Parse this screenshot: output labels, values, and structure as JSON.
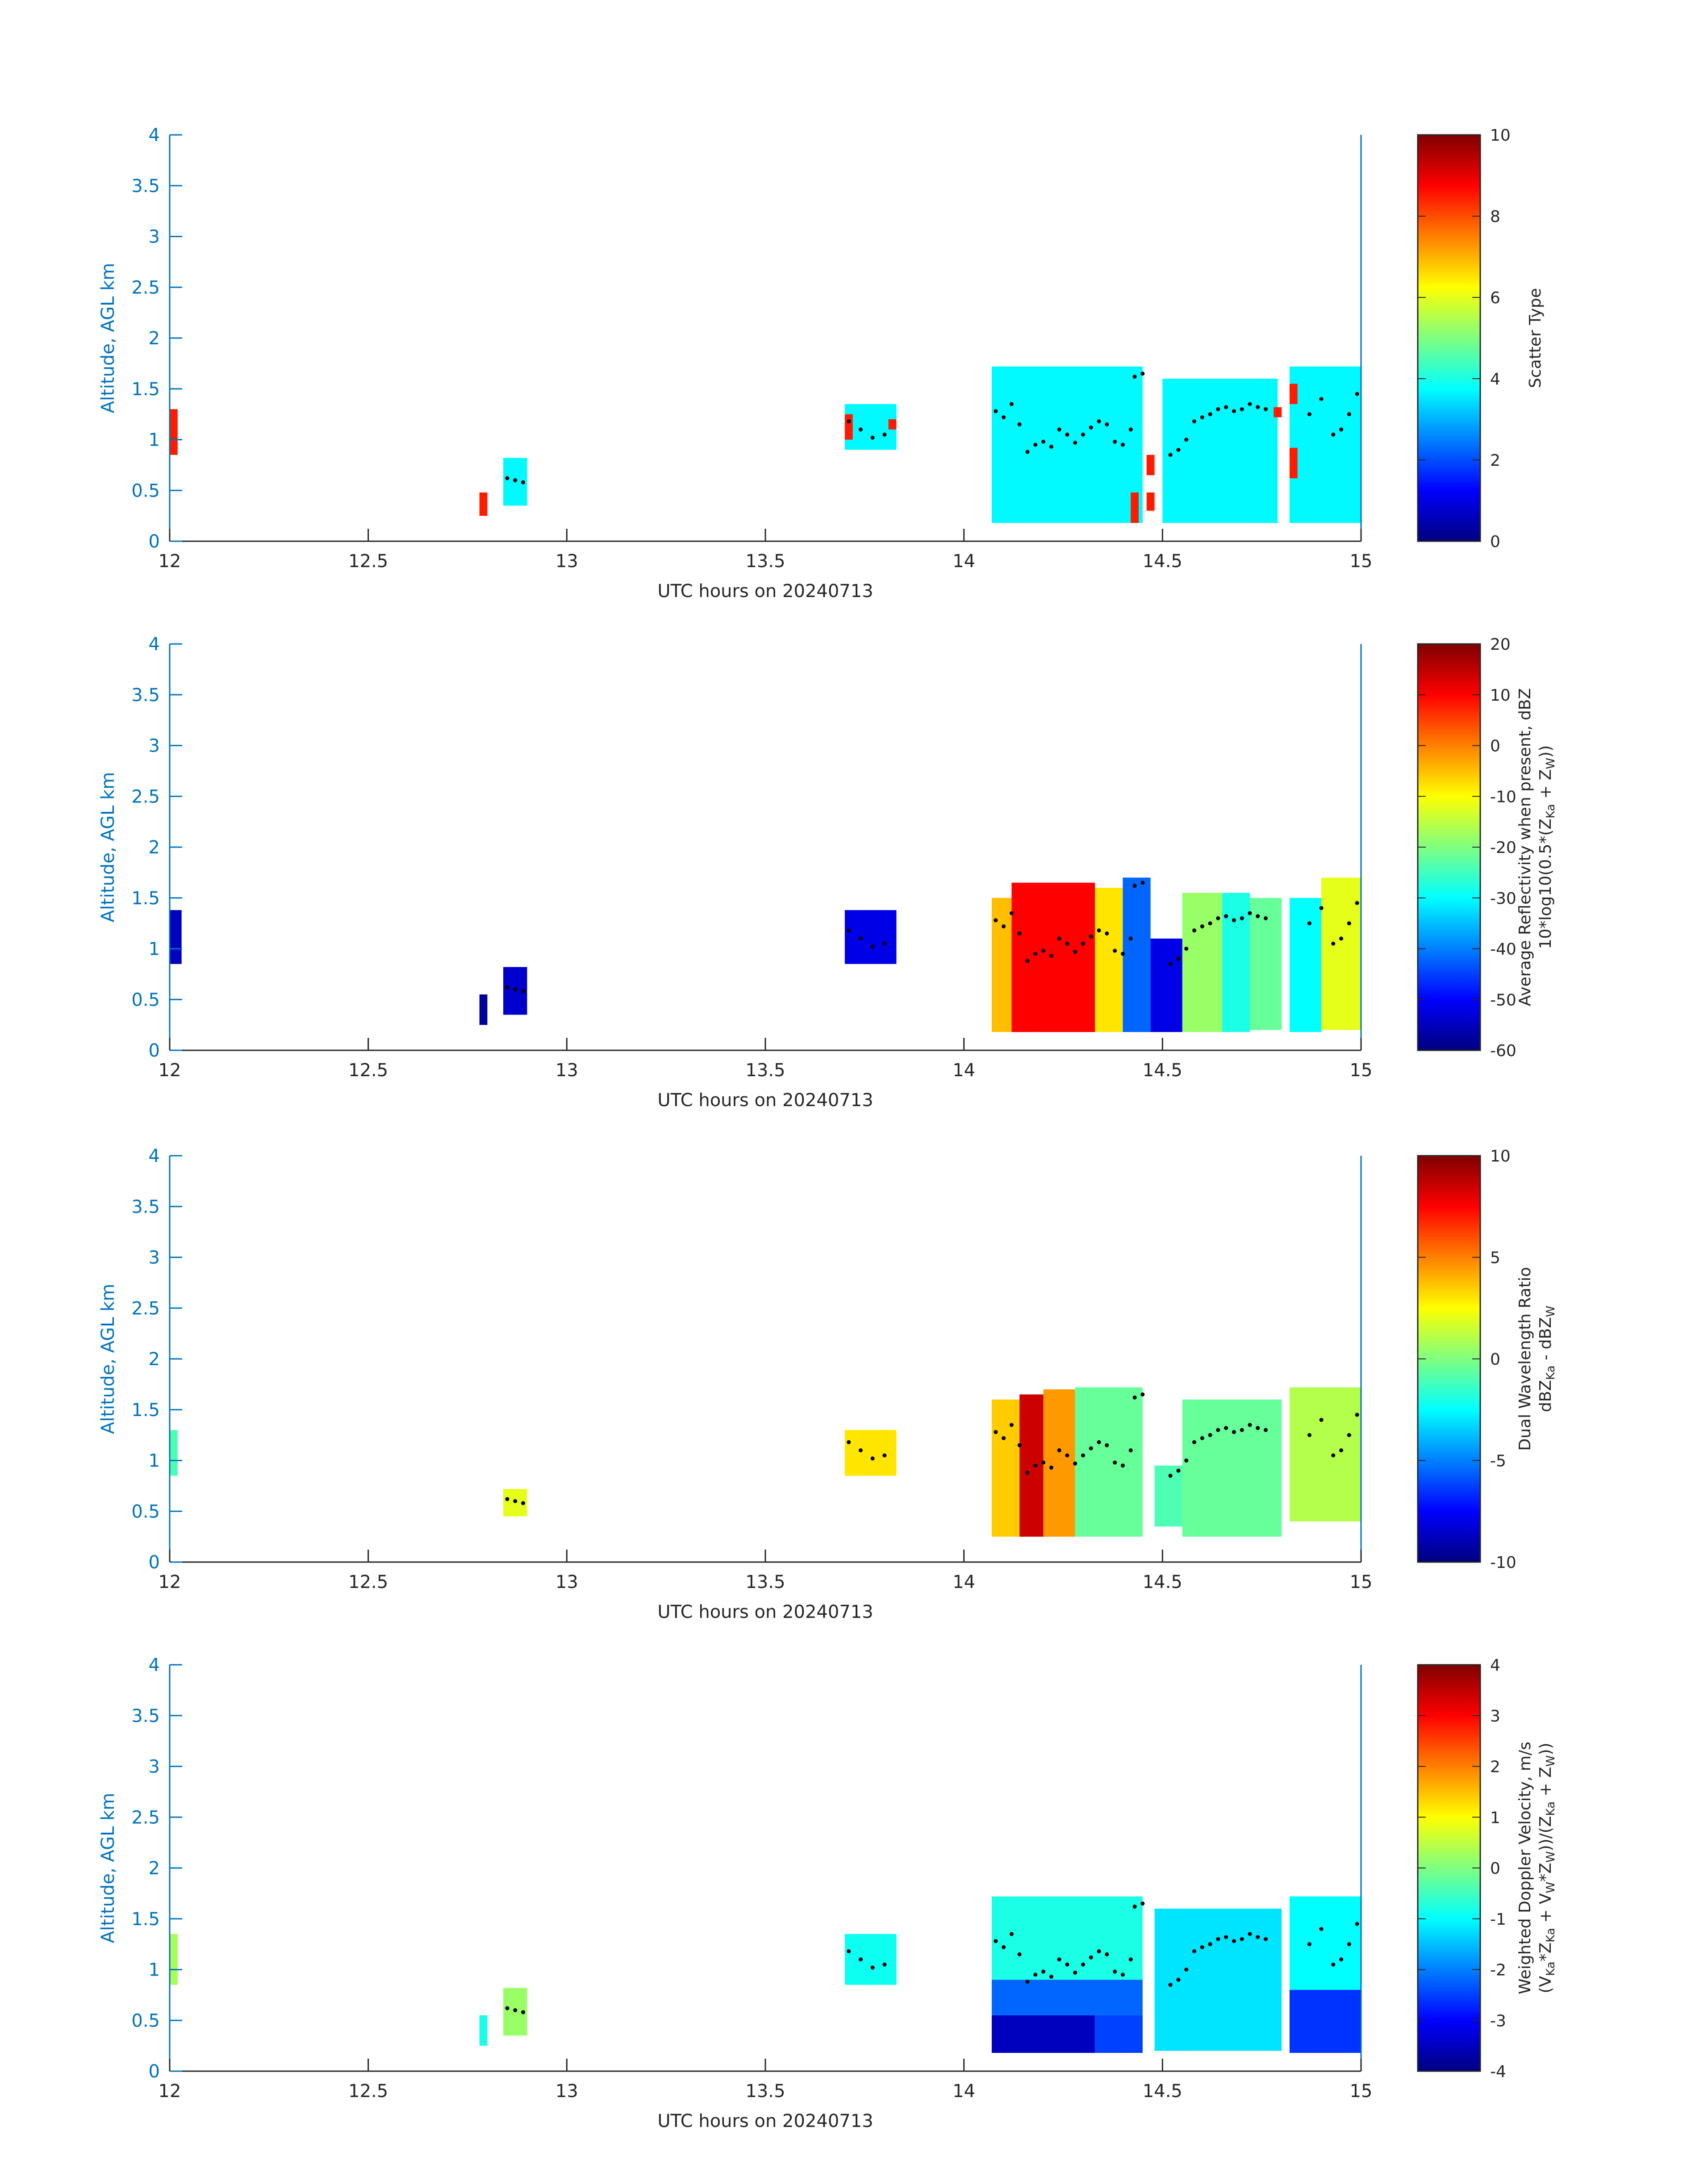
{
  "chart_data": [
    {
      "type": "heatmap",
      "xlabel": "UTC hours on 20240713",
      "ylabel": "Altitude, AGL km",
      "xlim": [
        12,
        15
      ],
      "ylim": [
        0,
        4
      ],
      "xticks": [
        "12",
        "12.5",
        "13",
        "13.5",
        "14",
        "14.5",
        "15"
      ],
      "yticks": [
        "0",
        "0.5",
        "1",
        "1.5",
        "2",
        "2.5",
        "3",
        "3.5",
        "4"
      ],
      "colorbar": {
        "label_lines": [
          "Scatter Type"
        ],
        "clim": [
          0,
          10
        ],
        "ticks": [
          "0",
          "2",
          "4",
          "6",
          "8",
          "10"
        ]
      },
      "regions": [
        {
          "x": [
            12.0,
            12.02
          ],
          "y": [
            0.85,
            1.3
          ],
          "value": 8.5
        },
        {
          "x": [
            12.78,
            12.8
          ],
          "y": [
            0.25,
            0.48
          ],
          "value": 8.5
        },
        {
          "x": [
            12.84,
            12.9
          ],
          "y": [
            0.35,
            0.82
          ],
          "value": 3.7
        },
        {
          "x": [
            13.7,
            13.83
          ],
          "y": [
            0.9,
            1.35
          ],
          "value": 3.7
        },
        {
          "x": [
            13.7,
            13.72
          ],
          "y": [
            1.0,
            1.25
          ],
          "value": 8.5
        },
        {
          "x": [
            13.81,
            13.83
          ],
          "y": [
            1.1,
            1.2
          ],
          "value": 8.5
        },
        {
          "x": [
            14.07,
            14.45
          ],
          "y": [
            0.18,
            1.72
          ],
          "value": 3.7
        },
        {
          "x": [
            14.5,
            14.79
          ],
          "y": [
            0.18,
            1.6
          ],
          "value": 3.7
        },
        {
          "x": [
            14.82,
            15.0
          ],
          "y": [
            0.18,
            1.72
          ],
          "value": 3.7
        },
        {
          "x": [
            14.42,
            14.44
          ],
          "y": [
            0.18,
            0.48
          ],
          "value": 8.5
        },
        {
          "x": [
            14.46,
            14.48
          ],
          "y": [
            0.3,
            0.48
          ],
          "value": 8.5
        },
        {
          "x": [
            14.46,
            14.48
          ],
          "y": [
            0.65,
            0.85
          ],
          "value": 8.5
        },
        {
          "x": [
            14.78,
            14.8
          ],
          "y": [
            1.22,
            1.32
          ],
          "value": 8.5
        },
        {
          "x": [
            14.82,
            14.84
          ],
          "y": [
            0.62,
            0.92
          ],
          "value": 8.5
        },
        {
          "x": [
            14.82,
            14.84
          ],
          "y": [
            1.35,
            1.55
          ],
          "value": 8.5
        }
      ]
    },
    {
      "type": "heatmap",
      "xlabel": "UTC hours on 20240713",
      "ylabel": "Altitude, AGL km",
      "xlim": [
        12,
        15
      ],
      "ylim": [
        0,
        4
      ],
      "xticks": [
        "12",
        "12.5",
        "13",
        "13.5",
        "14",
        "14.5",
        "15"
      ],
      "yticks": [
        "0",
        "0.5",
        "1",
        "1.5",
        "2",
        "2.5",
        "3",
        "3.5",
        "4"
      ],
      "colorbar": {
        "label_lines": [
          "Average Reflectivity when present, dBZ",
          "10*log10(0.5*(Z<sub>Ka</sub> + Z<sub>W</sub>))"
        ],
        "clim": [
          -60,
          20
        ],
        "ticks": [
          "-60",
          "-50",
          "-40",
          "-30",
          "-20",
          "-10",
          "0",
          "10",
          "20"
        ]
      },
      "regions": [
        {
          "x": [
            12.0,
            12.03
          ],
          "y": [
            0.85,
            1.38
          ],
          "value": -55
        },
        {
          "x": [
            12.78,
            12.8
          ],
          "y": [
            0.25,
            0.55
          ],
          "value": -58
        },
        {
          "x": [
            12.84,
            12.9
          ],
          "y": [
            0.35,
            0.82
          ],
          "value": -54
        },
        {
          "x": [
            13.7,
            13.83
          ],
          "y": [
            0.85,
            1.38
          ],
          "value": -52
        },
        {
          "x": [
            14.07,
            14.12
          ],
          "y": [
            0.18,
            1.5
          ],
          "value": -5
        },
        {
          "x": [
            14.12,
            14.33
          ],
          "y": [
            0.18,
            1.65
          ],
          "value": 10
        },
        {
          "x": [
            14.33,
            14.4
          ],
          "y": [
            0.18,
            1.6
          ],
          "value": -8
        },
        {
          "x": [
            14.4,
            14.47
          ],
          "y": [
            0.18,
            1.7
          ],
          "value": -42
        },
        {
          "x": [
            14.47,
            14.55
          ],
          "y": [
            0.18,
            1.1
          ],
          "value": -52
        },
        {
          "x": [
            14.55,
            14.65
          ],
          "y": [
            0.18,
            1.55
          ],
          "value": -18
        },
        {
          "x": [
            14.65,
            14.72
          ],
          "y": [
            0.18,
            1.55
          ],
          "value": -28
        },
        {
          "x": [
            14.72,
            14.8
          ],
          "y": [
            0.2,
            1.5
          ],
          "value": -22
        },
        {
          "x": [
            14.82,
            14.9
          ],
          "y": [
            0.18,
            1.5
          ],
          "value": -30
        },
        {
          "x": [
            14.9,
            15.0
          ],
          "y": [
            0.2,
            1.7
          ],
          "value": -12
        }
      ]
    },
    {
      "type": "heatmap",
      "xlabel": "UTC hours on 20240713",
      "ylabel": "Altitude, AGL km",
      "xlim": [
        12,
        15
      ],
      "ylim": [
        0,
        4
      ],
      "xticks": [
        "12",
        "12.5",
        "13",
        "13.5",
        "14",
        "14.5",
        "15"
      ],
      "yticks": [
        "0",
        "0.5",
        "1",
        "1.5",
        "2",
        "2.5",
        "3",
        "3.5",
        "4"
      ],
      "colorbar": {
        "label_lines": [
          "Dual Wavelength Ratio",
          "dBZ<sub>Ka</sub> - dBZ<sub>W</sub>"
        ],
        "clim": [
          -10,
          10
        ],
        "ticks": [
          "-10",
          "-5",
          "0",
          "5",
          "10"
        ]
      },
      "regions": [
        {
          "x": [
            12.0,
            12.02
          ],
          "y": [
            0.85,
            1.3
          ],
          "value": -1
        },
        {
          "x": [
            12.84,
            12.9
          ],
          "y": [
            0.45,
            0.72
          ],
          "value": 2
        },
        {
          "x": [
            13.7,
            13.83
          ],
          "y": [
            0.85,
            1.3
          ],
          "value": 3
        },
        {
          "x": [
            14.07,
            14.14
          ],
          "y": [
            0.25,
            1.6
          ],
          "value": 3.5
        },
        {
          "x": [
            14.14,
            14.2
          ],
          "y": [
            0.25,
            1.65
          ],
          "value": 8.5
        },
        {
          "x": [
            14.2,
            14.28
          ],
          "y": [
            0.25,
            1.7
          ],
          "value": 4.5
        },
        {
          "x": [
            14.28,
            14.45
          ],
          "y": [
            0.25,
            1.72
          ],
          "value": -0.5
        },
        {
          "x": [
            14.48,
            14.55
          ],
          "y": [
            0.35,
            0.95
          ],
          "value": -1
        },
        {
          "x": [
            14.55,
            14.8
          ],
          "y": [
            0.25,
            1.6
          ],
          "value": -0.5
        },
        {
          "x": [
            14.82,
            15.0
          ],
          "y": [
            0.4,
            1.72
          ],
          "value": 1
        }
      ]
    },
    {
      "type": "heatmap",
      "xlabel": "UTC hours on 20240713",
      "ylabel": "Altitude, AGL km",
      "xlim": [
        12,
        15
      ],
      "ylim": [
        0,
        4
      ],
      "xticks": [
        "12",
        "12.5",
        "13",
        "13.5",
        "14",
        "14.5",
        "15"
      ],
      "yticks": [
        "0",
        "0.5",
        "1",
        "1.5",
        "2",
        "2.5",
        "3",
        "3.5",
        "4"
      ],
      "colorbar": {
        "label_lines": [
          "Weighted Doppler Velocity, m/s",
          "(V<sub>Ka</sub>*Z<sub>Ka</sub> + V<sub>W</sub>*Z<sub>W</sub>))/(Z<sub>Ka</sub> + Z<sub>W</sub>))"
        ],
        "clim": [
          -4,
          4
        ],
        "ticks": [
          "-4",
          "-3",
          "-2",
          "-1",
          "0",
          "1",
          "2",
          "3",
          "4"
        ]
      },
      "regions": [
        {
          "x": [
            12.0,
            12.02
          ],
          "y": [
            0.85,
            1.35
          ],
          "value": 0.3
        },
        {
          "x": [
            12.78,
            12.8
          ],
          "y": [
            0.25,
            0.55
          ],
          "value": -0.8
        },
        {
          "x": [
            12.84,
            12.9
          ],
          "y": [
            0.35,
            0.82
          ],
          "value": 0.2
        },
        {
          "x": [
            13.7,
            13.83
          ],
          "y": [
            0.85,
            1.35
          ],
          "value": -0.9
        },
        {
          "x": [
            14.07,
            14.45
          ],
          "y": [
            0.9,
            1.72
          ],
          "value": -0.8
        },
        {
          "x": [
            14.07,
            14.45
          ],
          "y": [
            0.55,
            0.9
          ],
          "value": -2.2
        },
        {
          "x": [
            14.07,
            14.33
          ],
          "y": [
            0.18,
            0.55
          ],
          "value": -3.5
        },
        {
          "x": [
            14.33,
            14.45
          ],
          "y": [
            0.18,
            0.55
          ],
          "value": -2.5
        },
        {
          "x": [
            14.48,
            14.8
          ],
          "y": [
            0.2,
            1.6
          ],
          "value": -1.2
        },
        {
          "x": [
            14.82,
            15.0
          ],
          "y": [
            0.8,
            1.72
          ],
          "value": -1
        },
        {
          "x": [
            14.82,
            15.0
          ],
          "y": [
            0.18,
            0.8
          ],
          "value": -2.6
        }
      ]
    }
  ],
  "mode_dots": [
    [
      12.85,
      0.62
    ],
    [
      12.87,
      0.6
    ],
    [
      12.89,
      0.58
    ],
    [
      13.71,
      1.18
    ],
    [
      13.74,
      1.1
    ],
    [
      13.77,
      1.02
    ],
    [
      13.8,
      1.05
    ],
    [
      14.08,
      1.28
    ],
    [
      14.1,
      1.22
    ],
    [
      14.12,
      1.35
    ],
    [
      14.14,
      1.15
    ],
    [
      14.16,
      0.88
    ],
    [
      14.18,
      0.95
    ],
    [
      14.2,
      0.98
    ],
    [
      14.22,
      0.93
    ],
    [
      14.24,
      1.1
    ],
    [
      14.26,
      1.05
    ],
    [
      14.28,
      0.97
    ],
    [
      14.3,
      1.05
    ],
    [
      14.32,
      1.12
    ],
    [
      14.34,
      1.18
    ],
    [
      14.36,
      1.15
    ],
    [
      14.38,
      0.98
    ],
    [
      14.4,
      0.95
    ],
    [
      14.42,
      1.1
    ],
    [
      14.43,
      1.62
    ],
    [
      14.45,
      1.65
    ],
    [
      14.52,
      0.85
    ],
    [
      14.54,
      0.9
    ],
    [
      14.56,
      1.0
    ],
    [
      14.58,
      1.18
    ],
    [
      14.6,
      1.22
    ],
    [
      14.62,
      1.25
    ],
    [
      14.64,
      1.3
    ],
    [
      14.66,
      1.32
    ],
    [
      14.68,
      1.28
    ],
    [
      14.7,
      1.3
    ],
    [
      14.72,
      1.35
    ],
    [
      14.74,
      1.32
    ],
    [
      14.76,
      1.3
    ],
    [
      14.87,
      1.25
    ],
    [
      14.9,
      1.4
    ],
    [
      14.93,
      1.05
    ],
    [
      14.95,
      1.1
    ],
    [
      14.97,
      1.25
    ],
    [
      14.99,
      1.45
    ]
  ]
}
